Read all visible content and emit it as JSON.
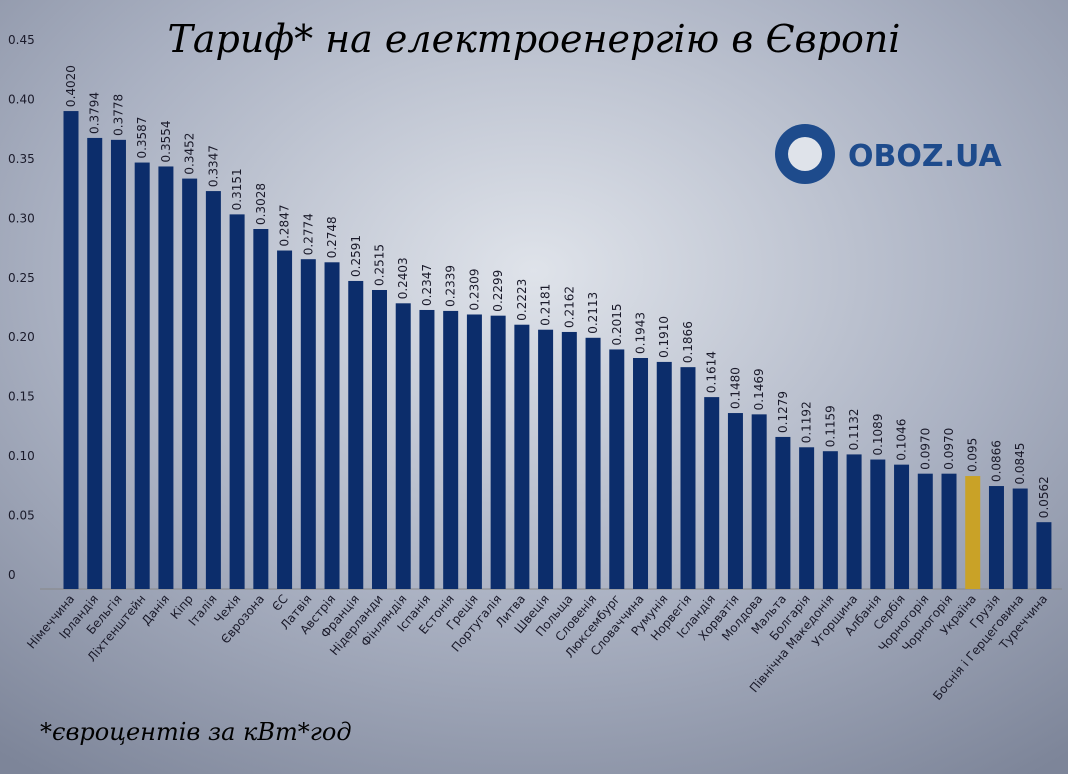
{
  "chart_data": {
    "type": "bar",
    "title": "Тариф* на електроенергію в Європі",
    "note": "*євроцентів за кВт*год",
    "logo": "OBOZ.UA",
    "categories": [
      "Німеччина",
      "Ірландія",
      "Бельгія",
      "Ліхтенштейн",
      "Данія",
      "Кіпр",
      "Італія",
      "Чехія",
      "Єврозона",
      "ЄС",
      "Латвія",
      "Австрія",
      "Франція",
      "Нідерланди",
      "Фінляндія",
      "Іспанія",
      "Естонія",
      "Греція",
      "Португалія",
      "Литва",
      "Швеція",
      "Польща",
      "Словенія",
      "Люксембург",
      "Словаччина",
      "Румунія",
      "Норвегія",
      "Ісландія",
      "Хорватія",
      "Молдова",
      "Мальта",
      "Болгарія",
      "Північна Македонія",
      "Угорщина",
      "Албанія",
      "Сербія",
      "Чорногорія",
      "Чорногорія",
      "Україна",
      "Грузія",
      "Боснія і Герцеговина",
      "Туреччина"
    ],
    "values": [
      0.402,
      0.3794,
      0.3778,
      0.3587,
      0.3554,
      0.3452,
      0.3347,
      0.3151,
      0.3028,
      0.2847,
      0.2774,
      0.2748,
      0.2591,
      0.2515,
      0.2403,
      0.2347,
      0.2339,
      0.2309,
      0.2299,
      0.2223,
      0.2181,
      0.2162,
      0.2113,
      0.2015,
      0.1943,
      0.191,
      0.1866,
      0.1614,
      0.148,
      0.1469,
      0.1279,
      0.1192,
      0.1159,
      0.1132,
      0.1089,
      0.1046,
      0.097,
      0.097,
      0.095,
      0.0866,
      0.0845,
      0.0562
    ],
    "value_labels": [
      "0.4020",
      "0.3794",
      "0.3778",
      "0.3587",
      "0.3554",
      "0.3452",
      "0.3347",
      "0.3151",
      "0.3028",
      "0.2847",
      "0.2774",
      "0.2748",
      "0.2591",
      "0.2515",
      "0.2403",
      "0.2347",
      "0.2339",
      "0.2309",
      "0.2299",
      "0.2223",
      "0.2181",
      "0.2162",
      "0.2113",
      "0.2015",
      "0.1943",
      "0.1910",
      "0.1866",
      "0.1614",
      "0.1480",
      "0.1469",
      "0.1279",
      "0.1192",
      "0.1159",
      "0.1132",
      "0.1089",
      "0.1046",
      "0.0970",
      "0.0970",
      "0.095",
      "0.0866",
      "0.0845",
      "0.0562"
    ],
    "colors": [
      "#0c2d6b",
      "#0c2d6b",
      "#0c2d6b",
      "#0c2d6b",
      "#0c2d6b",
      "#0c2d6b",
      "#0c2d6b",
      "#0c2d6b",
      "#0c2d6b",
      "#0c2d6b",
      "#0c2d6b",
      "#0c2d6b",
      "#0c2d6b",
      "#0c2d6b",
      "#0c2d6b",
      "#0c2d6b",
      "#0c2d6b",
      "#0c2d6b",
      "#0c2d6b",
      "#0c2d6b",
      "#0c2d6b",
      "#0c2d6b",
      "#0c2d6b",
      "#0c2d6b",
      "#0c2d6b",
      "#0c2d6b",
      "#0c2d6b",
      "#0c2d6b",
      "#0c2d6b",
      "#0c2d6b",
      "#0c2d6b",
      "#0c2d6b",
      "#0c2d6b",
      "#0c2d6b",
      "#0c2d6b",
      "#0c2d6b",
      "#0c2d6b",
      "#0c2d6b",
      "#c9a227",
      "#0c2d6b",
      "#0c2d6b",
      "#0c2d6b"
    ],
    "ylim": [
      0,
      0.45
    ],
    "yticks": [
      0,
      0.05,
      {
        "value": 0.1,
        "label": "0.10"
      },
      0.15,
      {
        "value": 0.2,
        "label": "0.20"
      },
      0.25,
      {
        "value": 0.3,
        "label": "0.30"
      },
      0.35,
      {
        "value": 0.4,
        "label": "0.40"
      },
      0.45
    ]
  }
}
